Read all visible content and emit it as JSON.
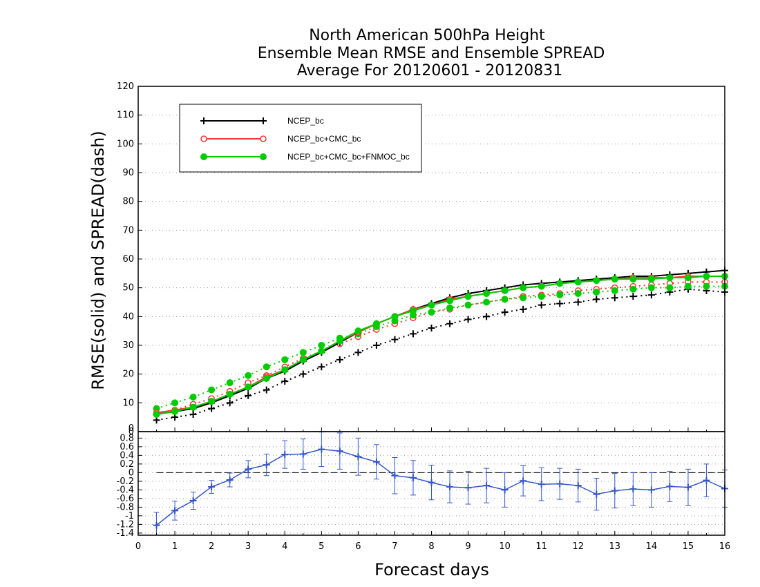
{
  "chart_data": [
    {
      "type": "line",
      "title": [
        "North American 500hPa Height",
        "Ensemble Mean RMSE and Ensemble SPREAD",
        "Average For 20120601 - 20120831"
      ],
      "ylabel": "RMSE(solid) and SPREAD(dash)",
      "xlim": [
        0,
        16
      ],
      "ylim": [
        0,
        120
      ],
      "y_ticks": [
        0,
        10,
        20,
        30,
        40,
        50,
        60,
        70,
        80,
        90,
        100,
        110,
        120
      ],
      "grid": "horizontal dotted",
      "legend_position": "top-left",
      "x": [
        0.5,
        1,
        1.5,
        2,
        2.5,
        3,
        3.5,
        4,
        4.5,
        5,
        5.5,
        6,
        6.5,
        7,
        7.5,
        8,
        8.5,
        9,
        9.5,
        10,
        10.5,
        11,
        11.5,
        12,
        12.5,
        13,
        13.5,
        14,
        14.5,
        15,
        15.5,
        16
      ],
      "series": [
        {
          "name": "NCEP_bc",
          "metric": "RMSE",
          "style": "solid",
          "color": "#000000",
          "marker": "plus",
          "values": [
            6.0,
            7.0,
            8.0,
            10.0,
            12.5,
            15.0,
            18.5,
            21.0,
            24.5,
            27.5,
            31.0,
            34.5,
            37.5,
            40.0,
            42.5,
            44.5,
            46.5,
            48.0,
            49.0,
            50.0,
            51.0,
            51.5,
            52.0,
            52.5,
            53.0,
            53.5,
            54.0,
            54.0,
            54.5,
            55.0,
            55.5,
            56.0
          ]
        },
        {
          "name": "NCEP_bc",
          "metric": "SPREAD",
          "style": "dotted",
          "color": "#000000",
          "marker": "plus",
          "values": [
            4.0,
            5.0,
            6.0,
            8.0,
            10.0,
            12.5,
            14.5,
            17.5,
            20.0,
            22.5,
            25.0,
            27.5,
            30.0,
            32.0,
            34.0,
            36.0,
            37.5,
            39.0,
            40.0,
            41.5,
            42.5,
            44.0,
            44.5,
            45.0,
            46.0,
            46.5,
            47.0,
            47.5,
            48.5,
            49.5,
            49.0,
            48.5
          ]
        },
        {
          "name": "NCEP_bc+CMC_bc",
          "metric": "RMSE",
          "style": "solid",
          "color": "#ff3333",
          "marker": "open-circle",
          "values": [
            6.5,
            7.5,
            8.5,
            10.5,
            13.0,
            15.5,
            19.0,
            21.5,
            25.0,
            28.0,
            31.5,
            34.5,
            37.5,
            40.0,
            42.5,
            44.0,
            46.0,
            47.0,
            48.0,
            49.0,
            50.0,
            50.5,
            51.5,
            52.0,
            52.5,
            53.0,
            53.5,
            53.5,
            53.5,
            54.0,
            54.0,
            54.0
          ]
        },
        {
          "name": "NCEP_bc+CMC_bc",
          "metric": "SPREAD",
          "style": "dotted",
          "color": "#ff3333",
          "marker": "open-circle",
          "values": [
            6.5,
            7.5,
            9.5,
            11.5,
            14.0,
            17.0,
            19.5,
            22.5,
            25.5,
            28.0,
            30.5,
            33.0,
            35.5,
            37.5,
            39.5,
            41.5,
            42.5,
            44.0,
            45.0,
            46.0,
            47.0,
            47.5,
            48.0,
            49.0,
            49.5,
            50.0,
            50.5,
            51.0,
            51.5,
            52.0,
            52.0,
            52.0
          ]
        },
        {
          "name": "NCEP_bc+CMC_bc+FNMOC_bc",
          "metric": "RMSE",
          "style": "solid",
          "color": "#00cc00",
          "marker": "filled-circle",
          "values": [
            6.0,
            7.0,
            8.5,
            10.5,
            13.0,
            15.5,
            18.5,
            21.5,
            25.0,
            28.0,
            31.5,
            35.0,
            37.5,
            40.0,
            42.0,
            44.0,
            45.5,
            47.0,
            48.0,
            49.0,
            50.0,
            50.5,
            51.5,
            52.0,
            52.5,
            53.0,
            53.0,
            53.0,
            53.5,
            53.5,
            54.0,
            54.0
          ]
        },
        {
          "name": "NCEP_bc+CMC_bc+FNMOC_bc",
          "metric": "SPREAD",
          "style": "dotted",
          "color": "#00cc00",
          "marker": "filled-circle",
          "values": [
            8.0,
            10.0,
            12.0,
            14.5,
            17.0,
            19.5,
            22.5,
            25.0,
            27.5,
            30.0,
            32.5,
            34.0,
            36.5,
            38.5,
            40.5,
            41.5,
            43.0,
            44.0,
            45.0,
            46.0,
            46.5,
            47.0,
            47.5,
            48.0,
            48.5,
            49.0,
            49.5,
            50.0,
            50.0,
            50.5,
            50.5,
            50.5
          ]
        }
      ]
    },
    {
      "type": "line",
      "xlabel": "Forecast days",
      "xlim": [
        0,
        16
      ],
      "ylim": [
        -1.45,
        0.95
      ],
      "x_ticks": [
        0,
        1,
        2,
        3,
        4,
        5,
        6,
        7,
        8,
        9,
        10,
        11,
        12,
        13,
        14,
        15,
        16
      ],
      "y_ticks": [
        -1.4,
        -1.2,
        -1,
        -0.8,
        -0.6,
        -0.4,
        -0.2,
        0,
        0.2,
        0.4,
        0.6,
        0.8
      ],
      "y_tick_labels": [
        "-1.4",
        "-1.2",
        "-1",
        "-0.8",
        "-0.6",
        "-0.4",
        "-0.2",
        "0",
        "0.2",
        "0.4",
        "0.6",
        "0.8"
      ],
      "top_label": "0",
      "grid": "horizontal dotted",
      "reference_line": 0,
      "x": [
        0.5,
        1,
        1.5,
        2,
        2.5,
        3,
        3.5,
        4,
        4.5,
        5,
        5.5,
        6,
        6.5,
        7,
        7.5,
        8,
        8.5,
        9,
        9.5,
        10,
        10.5,
        11,
        11.5,
        12,
        12.5,
        13,
        13.5,
        14,
        14.5,
        15,
        15.5,
        16
      ],
      "series": [
        {
          "style": "solid",
          "color": "#3355cc",
          "marker": "plus",
          "error_bars": true,
          "values": [
            -1.22,
            -0.88,
            -0.65,
            -0.33,
            -0.17,
            0.08,
            0.18,
            0.42,
            0.43,
            0.54,
            0.5,
            0.37,
            0.25,
            -0.07,
            -0.12,
            -0.23,
            -0.33,
            -0.35,
            -0.3,
            -0.4,
            -0.19,
            -0.27,
            -0.26,
            -0.3,
            -0.5,
            -0.42,
            -0.38,
            -0.4,
            -0.32,
            -0.34,
            -0.18,
            -0.37
          ],
          "error_half": [
            0.3,
            0.22,
            0.2,
            0.15,
            0.16,
            0.2,
            0.25,
            0.32,
            0.35,
            0.4,
            0.42,
            0.43,
            0.4,
            0.42,
            0.4,
            0.4,
            0.37,
            0.38,
            0.4,
            0.4,
            0.35,
            0.38,
            0.36,
            0.38,
            0.37,
            0.4,
            0.38,
            0.4,
            0.35,
            0.42,
            0.38,
            0.43
          ]
        }
      ]
    }
  ]
}
